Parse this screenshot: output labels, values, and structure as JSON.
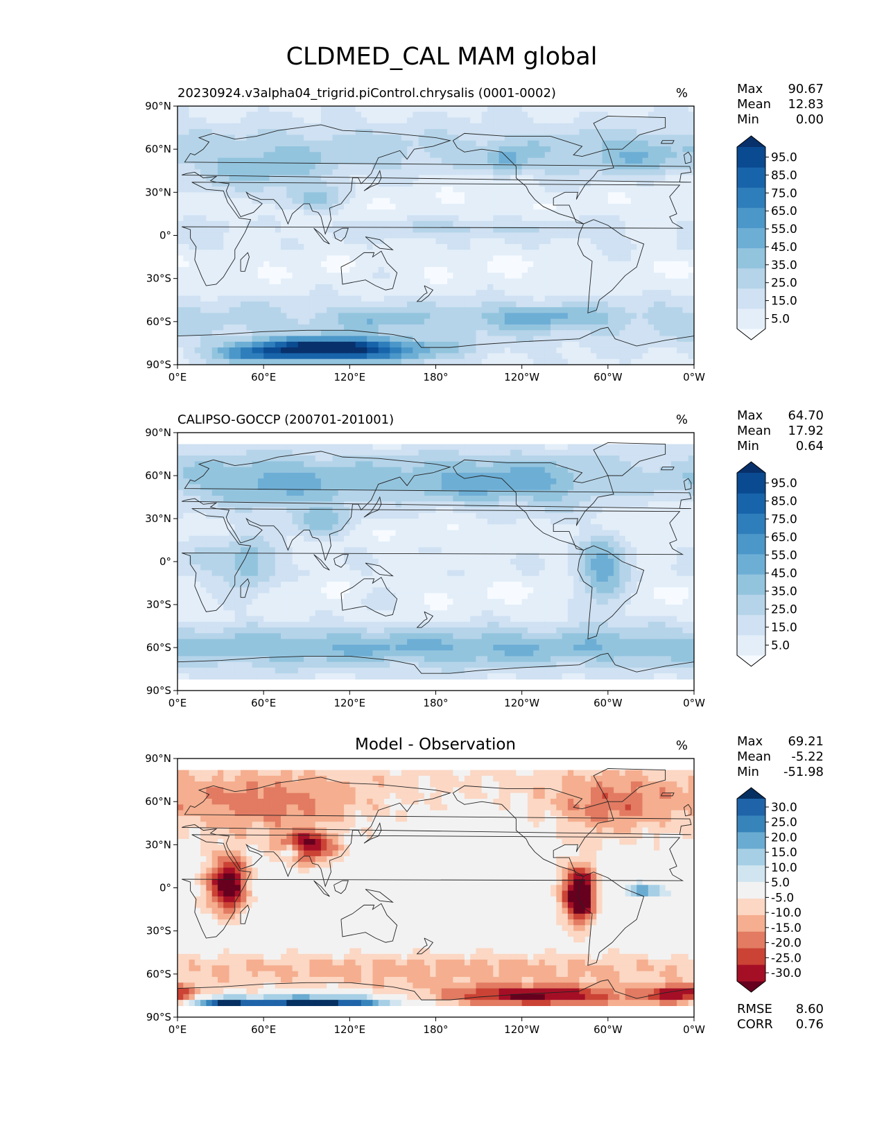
{
  "title": "CLDMED_CAL MAM global",
  "x_ticks": [
    "0°E",
    "60°E",
    "120°E",
    "180°",
    "120°W",
    "60°W",
    "0°W"
  ],
  "y_ticks": [
    "90°N",
    "60°N",
    "30°N",
    "0°",
    "30°S",
    "60°S",
    "90°S"
  ],
  "colors": {
    "cloud_levels": [
      "#f7fbff",
      "#e3eef9",
      "#cfe1f2",
      "#b5d4e9",
      "#93c4de",
      "#6daed5",
      "#4b97c9",
      "#2f7ebc",
      "#1864aa",
      "#0a4a90",
      "#08306b"
    ],
    "diff_levels": [
      "#67001f",
      "#a50f26",
      "#cb4335",
      "#e27b62",
      "#f5ae8f",
      "#fbd7c4",
      "#f2f2f2",
      "#d1e5f0",
      "#a6cfe5",
      "#6aabd1",
      "#3784bb",
      "#1f64a8",
      "#053061"
    ],
    "coastline": "#222222"
  },
  "panels": [
    {
      "id": "model",
      "title": "20230924.v3alpha04_trigrid.piControl.chrysalis (0001-0002)",
      "title_align": "left",
      "units": "%",
      "stats": {
        "max_label": "Max",
        "max": "90.67",
        "mean_label": "Mean",
        "mean": "12.83",
        "min_label": "Min",
        "min": "0.00"
      },
      "colorbar_ticks": [
        "95.0",
        "85.0",
        "75.0",
        "65.0",
        "55.0",
        "45.0",
        "35.0",
        "25.0",
        "15.0",
        "5.0"
      ]
    },
    {
      "id": "obs",
      "title": "CALIPSO-GOCCP (200701-201001)",
      "title_align": "left",
      "units": "%",
      "stats": {
        "max_label": "Max",
        "max": "64.70",
        "mean_label": "Mean",
        "mean": "17.92",
        "min_label": "Min",
        "min": "0.64"
      },
      "colorbar_ticks": [
        "95.0",
        "85.0",
        "75.0",
        "65.0",
        "55.0",
        "45.0",
        "35.0",
        "25.0",
        "15.0",
        "5.0"
      ]
    },
    {
      "id": "diff",
      "title": "Model - Observation",
      "title_align": "center",
      "units": "%",
      "stats": {
        "max_label": "Max",
        "max": "69.21",
        "mean_label": "Mean",
        "mean": "-5.22",
        "min_label": "Min",
        "min": "-51.98"
      },
      "colorbar_ticks": [
        "30.0",
        "25.0",
        "20.0",
        "15.0",
        "10.0",
        "5.0",
        "-5.0",
        "-10.0",
        "-15.0",
        "-20.0",
        "-25.0",
        "-30.0"
      ],
      "metrics": {
        "rmse_label": "RMSE",
        "rmse": "8.60",
        "corr_label": "CORR",
        "corr": "0.76"
      }
    }
  ],
  "chart_data": [
    {
      "type": "heatmap",
      "title": "20230924.v3alpha04_trigrid.piControl.chrysalis (0001-0002)",
      "units": "%",
      "xlim": [
        0,
        360
      ],
      "ylim": [
        -90,
        90
      ],
      "x_unit": "longitude (degrees east)",
      "y_unit": "latitude (degrees)",
      "levels": [
        0,
        5,
        15,
        25,
        35,
        45,
        55,
        65,
        75,
        85,
        95,
        100
      ],
      "features": [
        {
          "lon": 120,
          "lat": -80,
          "value": 85,
          "slon": 42,
          "slat": 6
        },
        {
          "lon": 55,
          "lat": -82,
          "value": 60,
          "slon": 20,
          "slat": 5
        },
        {
          "lon": 100,
          "lat": -78,
          "value": 70,
          "slon": 22,
          "slat": 4
        },
        {
          "lon": 250,
          "lat": -57,
          "value": 35,
          "slon": 30,
          "slat": 5
        },
        {
          "lon": 140,
          "lat": -58,
          "value": 30,
          "slon": 20,
          "slat": 4
        },
        {
          "lon": 230,
          "lat": 52,
          "value": 40,
          "slon": 8,
          "slat": 6
        },
        {
          "lon": 55,
          "lat": 42,
          "value": 30,
          "slon": 28,
          "slat": 10
        },
        {
          "lon": 95,
          "lat": 25,
          "value": 33,
          "slon": 14,
          "slat": 6
        },
        {
          "lon": 320,
          "lat": 55,
          "value": 30,
          "slon": 20,
          "slat": 10
        },
        {
          "lon": 200,
          "lat": 5,
          "value": 22,
          "slon": 60,
          "slat": 5
        }
      ]
    },
    {
      "type": "heatmap",
      "title": "CALIPSO-GOCCP (200701-201001)",
      "units": "%",
      "xlim": [
        0,
        360
      ],
      "ylim": [
        -90,
        90
      ],
      "data_lat_range": [
        -82,
        82
      ],
      "x_unit": "longitude (degrees east)",
      "y_unit": "latitude (degrees)",
      "levels": [
        0,
        5,
        15,
        25,
        35,
        45,
        55,
        65,
        75,
        85,
        95,
        100
      ],
      "features": [
        {
          "lon": 50,
          "lat": -2,
          "value": 35,
          "slon": 14,
          "slat": 16
        },
        {
          "lon": 295,
          "lat": -6,
          "value": 40,
          "slon": 12,
          "slat": 18
        },
        {
          "lon": 100,
          "lat": 28,
          "value": 35,
          "slon": 14,
          "slat": 8
        },
        {
          "lon": 210,
          "lat": 55,
          "value": 35,
          "slon": 40,
          "slat": 12
        },
        {
          "lon": 180,
          "lat": -60,
          "value": 30,
          "slon": 180,
          "slat": 8
        },
        {
          "lon": 60,
          "lat": 55,
          "value": 28,
          "slon": 40,
          "slat": 12
        }
      ]
    },
    {
      "type": "heatmap",
      "title": "Model - Observation",
      "units": "%",
      "xlim": [
        0,
        360
      ],
      "ylim": [
        -90,
        90
      ],
      "data_lat_range": [
        -82,
        82
      ],
      "x_unit": "longitude (degrees east)",
      "y_unit": "latitude (degrees)",
      "levels": [
        -35,
        -30,
        -25,
        -20,
        -15,
        -10,
        -5,
        5,
        10,
        15,
        20,
        25,
        30,
        35
      ],
      "features": [
        {
          "lon": 95,
          "lat": -82,
          "value": 45,
          "slon": 40,
          "slat": 5
        },
        {
          "lon": 30,
          "lat": -80,
          "value": 28,
          "slon": 14,
          "slat": 3
        },
        {
          "lon": 280,
          "lat": -5,
          "value": -45,
          "slon": 8,
          "slat": 14
        },
        {
          "lon": 35,
          "lat": 2,
          "value": -38,
          "slon": 10,
          "slat": 14
        },
        {
          "lon": 90,
          "lat": 28,
          "value": -30,
          "slon": 14,
          "slat": 8
        },
        {
          "lon": 80,
          "lat": 25,
          "value": 20,
          "slon": 6,
          "slat": 3
        },
        {
          "lon": 325,
          "lat": -2,
          "value": 20,
          "slon": 10,
          "slat": 3
        },
        {
          "lon": 250,
          "lat": -75,
          "value": -25,
          "slon": 45,
          "slat": 5
        },
        {
          "lon": 350,
          "lat": -74,
          "value": -25,
          "slon": 15,
          "slat": 4
        },
        {
          "lon": 60,
          "lat": 55,
          "value": -15,
          "slon": 50,
          "slat": 15
        },
        {
          "lon": 300,
          "lat": 55,
          "value": -15,
          "slon": 30,
          "slat": 15
        },
        {
          "lon": 180,
          "lat": -55,
          "value": -10,
          "slon": 180,
          "slat": 8
        }
      ]
    }
  ]
}
